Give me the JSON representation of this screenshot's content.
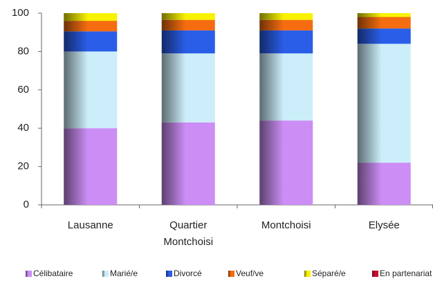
{
  "chart_data": {
    "type": "bar",
    "stacked": true,
    "categories": [
      "Lausanne",
      "Quartier Montchoisi",
      "Montchoisi",
      "Elysée"
    ],
    "series": [
      {
        "name": "Célibataire",
        "color": "#cc8ef5",
        "values": [
          40,
          43,
          44,
          22
        ]
      },
      {
        "name": "Marié/e",
        "color": "#cceefa",
        "values": [
          40,
          36,
          35,
          62
        ]
      },
      {
        "name": "Divorcé",
        "color": "#2a5ee8",
        "values": [
          10.5,
          12,
          12,
          8
        ]
      },
      {
        "name": "Veuf/ve",
        "color": "#f56d10",
        "values": [
          5.5,
          5.5,
          5.5,
          6
        ]
      },
      {
        "name": "Séparé/e",
        "color": "#f8f200",
        "values": [
          4,
          3.5,
          3.5,
          2
        ]
      },
      {
        "name": "En partenariat",
        "color": "#c8102e",
        "values": [
          0,
          0,
          0,
          0
        ]
      }
    ],
    "ylim": [
      0,
      100
    ],
    "yticks": [
      0,
      20,
      40,
      60,
      80,
      100
    ],
    "grid": false
  }
}
